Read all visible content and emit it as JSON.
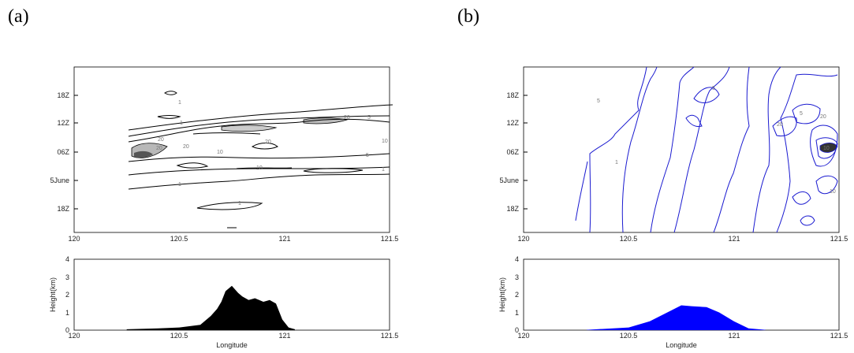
{
  "panels": [
    {
      "letter": "(a)",
      "contour": {
        "y_ticks": [
          "18Z",
          "12Z",
          "06Z",
          "5June",
          "18Z"
        ],
        "x_ticks": [
          "120",
          "120.5",
          "121",
          "121.5"
        ],
        "contour_labels": [
          "1",
          "5",
          "10",
          "20"
        ]
      },
      "terrain": {
        "ylabel": "Height(km)",
        "xlabel": "Longitude",
        "y_ticks": [
          "0",
          "1",
          "2",
          "3",
          "4"
        ],
        "x_ticks": [
          "120",
          "120.5",
          "121",
          "121.5"
        ],
        "fill": "#000000"
      }
    },
    {
      "letter": "(b)",
      "contour": {
        "y_ticks": [
          "18Z",
          "12Z",
          "06Z",
          "5June",
          "18Z"
        ],
        "x_ticks": [
          "120",
          "120.5",
          "121",
          "121.5"
        ],
        "contour_labels": [
          "1",
          "5",
          "10",
          "20"
        ],
        "line_color": "#1a1ad0"
      },
      "terrain": {
        "ylabel": "Height(km)",
        "xlabel": "Longitude",
        "y_ticks": [
          "0",
          "1",
          "2",
          "3",
          "4"
        ],
        "x_ticks": [
          "120",
          "120.5",
          "121",
          "121.5"
        ],
        "fill": "#0000ff"
      }
    }
  ],
  "chart_data": [
    {
      "type": "area",
      "panel": "(a)",
      "xlabel": "Longitude",
      "ylabel": "Height(km)",
      "xlim": [
        120,
        121.5
      ],
      "ylim": [
        0,
        4
      ],
      "x": [
        120.25,
        120.4,
        120.5,
        120.6,
        120.65,
        120.68,
        120.7,
        120.72,
        120.75,
        120.78,
        120.8,
        120.83,
        120.86,
        120.9,
        120.93,
        120.96,
        120.99,
        121.02,
        121.05
      ],
      "y": [
        0.05,
        0.1,
        0.15,
        0.3,
        0.8,
        1.2,
        1.6,
        2.2,
        2.5,
        2.1,
        1.9,
        1.7,
        1.8,
        1.6,
        1.7,
        1.5,
        0.6,
        0.15,
        0.05
      ]
    },
    {
      "type": "area",
      "panel": "(b)",
      "xlabel": "Longitude",
      "ylabel": "Height(km)",
      "xlim": [
        120,
        121.5
      ],
      "ylim": [
        0,
        4
      ],
      "x": [
        120.3,
        120.5,
        120.6,
        120.7,
        120.75,
        120.8,
        120.87,
        120.93,
        121.0,
        121.07,
        121.15
      ],
      "y": [
        0.02,
        0.15,
        0.5,
        1.1,
        1.4,
        1.35,
        1.3,
        1.0,
        0.5,
        0.1,
        0.02
      ]
    }
  ]
}
